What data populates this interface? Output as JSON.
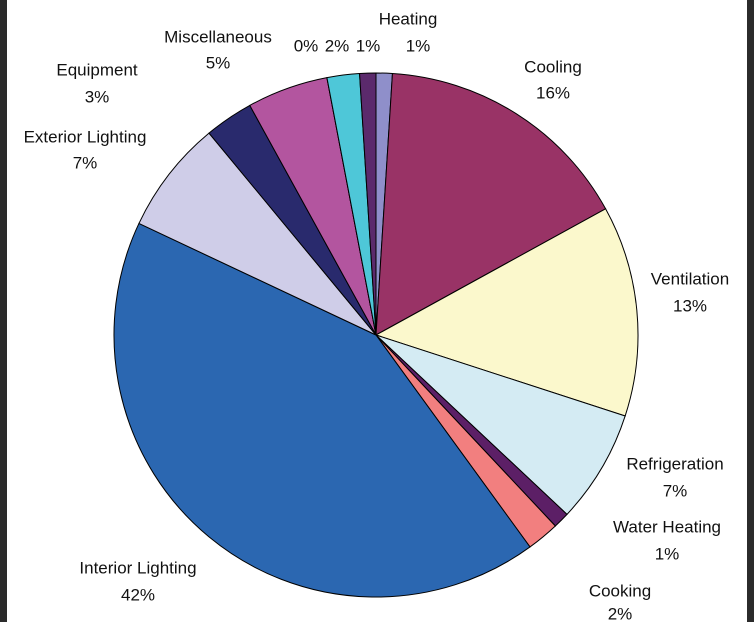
{
  "chart_data": {
    "type": "pie",
    "categories": [
      "Heating",
      "Cooling",
      "Ventilation",
      "Refrigeration",
      "Water Heating",
      "Cooking",
      "Interior Lighting",
      "Exterior Lighting",
      "Equipment",
      "Miscellaneous",
      null,
      null,
      null
    ],
    "values": [
      1,
      16,
      13,
      7,
      1,
      2,
      42,
      7,
      3,
      5,
      0,
      2,
      1
    ],
    "value_labels": [
      "1%",
      "16%",
      "13%",
      "7%",
      "1%",
      "2%",
      "42%",
      "7%",
      "3%",
      "5%",
      "0%",
      "2%",
      "1%"
    ],
    "colors": [
      "#8f8fca",
      "#993366",
      "#fbf8cc",
      "#d4ebf3",
      "#5c1f66",
      "#f27f7f",
      "#2b67b1",
      "#cfcde8",
      "#292a6d",
      "#b3559f",
      "#ffe23a",
      "#4ec7d8",
      "#5b2a6c"
    ]
  }
}
